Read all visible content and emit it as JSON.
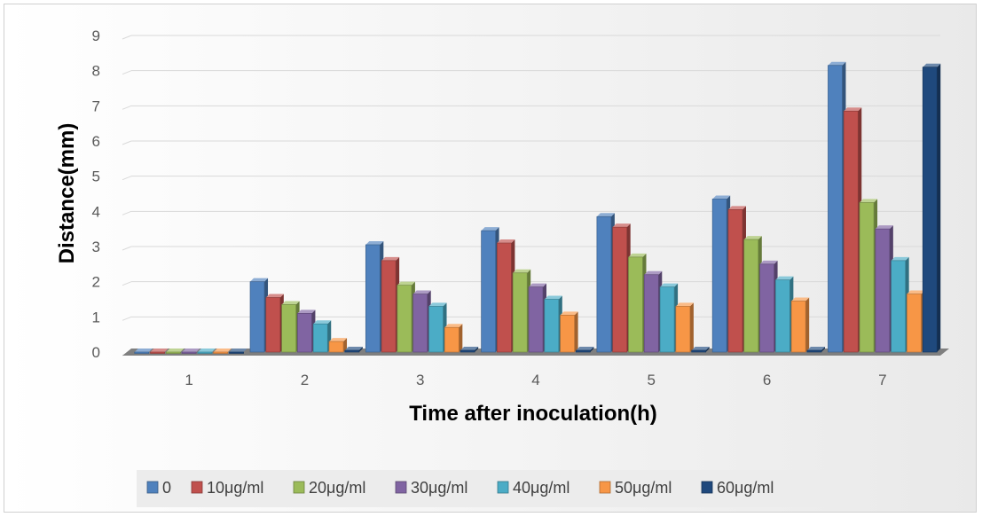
{
  "chart_data": {
    "type": "bar",
    "style": "3d-clustered-column",
    "categories": [
      "1",
      "2",
      "3",
      "4",
      "5",
      "6",
      "7"
    ],
    "series": [
      {
        "name": "0",
        "color": "#4F81BD",
        "values": [
          0,
          2.0,
          3.05,
          3.45,
          3.85,
          4.35,
          8.15
        ]
      },
      {
        "name": "10μg/ml",
        "color": "#C0504D",
        "values": [
          0,
          1.55,
          2.6,
          3.1,
          3.55,
          4.05,
          6.85
        ]
      },
      {
        "name": "20μg/ml",
        "color": "#9BBB59",
        "values": [
          0,
          1.35,
          1.9,
          2.25,
          2.7,
          3.2,
          4.25
        ]
      },
      {
        "name": "30μg/ml",
        "color": "#8064A2",
        "values": [
          0,
          1.1,
          1.65,
          1.85,
          2.2,
          2.5,
          3.5
        ]
      },
      {
        "name": "40μg/ml",
        "color": "#4BACC6",
        "values": [
          0,
          0.8,
          1.3,
          1.5,
          1.85,
          2.05,
          2.6
        ]
      },
      {
        "name": "50μg/ml",
        "color": "#F79646",
        "values": [
          0,
          0.3,
          0.7,
          1.05,
          1.3,
          1.45,
          1.65
        ]
      },
      {
        "name": "60μg/ml",
        "color": "#1F497D",
        "values": [
          0,
          0.05,
          0.05,
          0.05,
          0.05,
          0.05,
          8.1
        ]
      }
    ],
    "xlabel": "Time after inoculation(h)",
    "ylabel": "Distance(mm)",
    "ylim": [
      0,
      9
    ],
    "yticks": [
      "0",
      "1",
      "2",
      "3",
      "4",
      "5",
      "6",
      "7",
      "8",
      "9"
    ],
    "grid": true,
    "legend": "bottom"
  }
}
